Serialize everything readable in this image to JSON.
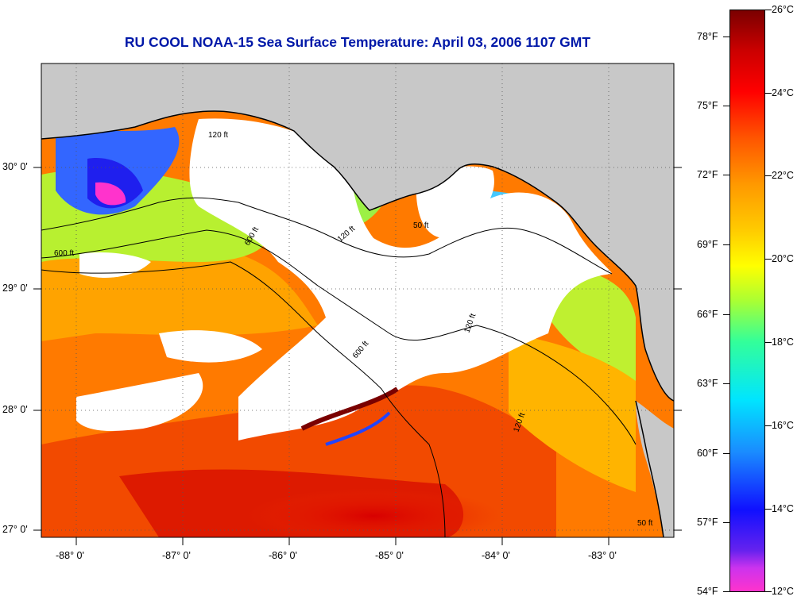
{
  "title": "RU COOL  NOAA-15  Sea Surface Temperature:  April 03, 2006 1107 GMT",
  "map": {
    "lon_labels": [
      "-88° 0'",
      "-87° 0'",
      "-86° 0'",
      "-85° 0'",
      "-84° 0'",
      "-83° 0'"
    ],
    "lat_labels": [
      "30° 0'",
      "29° 0'",
      "28° 0'",
      "27° 0'"
    ],
    "contour_labels": [
      "120 ft",
      "50 ft",
      "600 ft",
      "120 ft",
      "600 ft",
      "120 ft",
      "600 ft",
      "120 ft",
      "50 ft"
    ],
    "land_color": "#c8c8c8",
    "cloud_color": "#ffffff"
  },
  "colorbar": {
    "fahrenheit_labels": [
      "78°F",
      "75°F",
      "72°F",
      "69°F",
      "66°F",
      "63°F",
      "60°F",
      "57°F",
      "54°F"
    ],
    "celsius_labels": [
      "26°C",
      "24°C",
      "22°C",
      "20°C",
      "18°C",
      "16°C",
      "14°C",
      "12°C"
    ]
  }
}
